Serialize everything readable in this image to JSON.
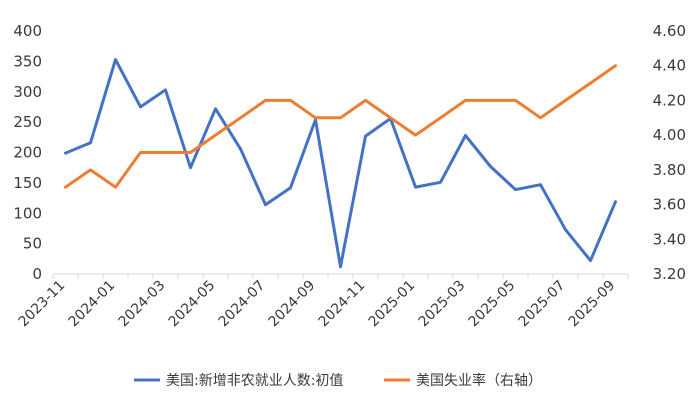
{
  "chart_data": {
    "type": "line",
    "x": [
      "2023-11",
      "2023-12",
      "2024-01",
      "2024-02",
      "2024-03",
      "2024-04",
      "2024-05",
      "2024-06",
      "2024-07",
      "2024-08",
      "2024-09",
      "2024-10",
      "2024-11",
      "2024-12",
      "2025-01",
      "2025-02",
      "2025-03",
      "2025-04",
      "2025-05",
      "2025-06",
      "2025-07",
      "2025-08",
      "2025-09"
    ],
    "x_tick_labels": [
      "2023-11",
      "2024-01",
      "2024-03",
      "2024-05",
      "2024-07",
      "2024-09",
      "2024-11",
      "2025-01",
      "2025-03",
      "2025-05",
      "2025-07",
      "2025-09"
    ],
    "y_left": {
      "ylim": [
        0,
        400
      ],
      "ticks": [
        "400",
        "350",
        "300",
        "250",
        "200",
        "150",
        "100",
        "50",
        "0"
      ]
    },
    "y_right": {
      "ylim": [
        3.2,
        4.6
      ],
      "ticks": [
        "4.60",
        "4.40",
        "4.20",
        "4.00",
        "3.80",
        "3.60",
        "3.40",
        "3.20"
      ]
    },
    "series": [
      {
        "name": "美国:新增非农就业人数:初值",
        "axis": "left",
        "color": "#4472c4",
        "values": [
          199,
          216,
          353,
          275,
          303,
          175,
          272,
          206,
          114,
          142,
          254,
          12,
          227,
          256,
          143,
          151,
          228,
          177,
          139,
          147,
          73,
          22,
          119
        ]
      },
      {
        "name": "美国失业率（右轴）",
        "axis": "right",
        "color": "#ed7d31",
        "values": [
          3.7,
          3.8,
          3.7,
          3.9,
          3.9,
          3.9,
          4.0,
          4.1,
          4.2,
          4.2,
          4.1,
          4.1,
          4.2,
          4.1,
          4.0,
          4.1,
          4.2,
          4.2,
          4.2,
          4.1,
          4.2,
          4.3,
          4.4
        ]
      }
    ],
    "grid": false,
    "legend_position": "bottom"
  }
}
